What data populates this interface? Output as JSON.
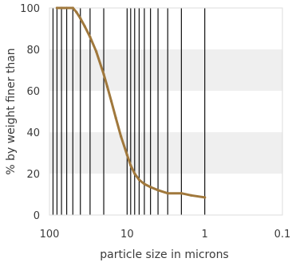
{
  "chart_data": {
    "type": "line",
    "title": "",
    "xlabel": "particle size in microns",
    "ylabel": "% by weight finer than",
    "x_scale": "log",
    "x_reversed": true,
    "xlim": [
      100,
      0.1
    ],
    "ylim": [
      0,
      100
    ],
    "x_ticks": [
      100,
      10,
      1,
      0.1
    ],
    "x_tick_labels": [
      "100",
      "10",
      "1",
      "0.1"
    ],
    "y_ticks": [
      0,
      20,
      40,
      60,
      80,
      100
    ],
    "y_tick_labels": [
      "0",
      "20",
      "40",
      "60",
      "80",
      "100"
    ],
    "grid": "horizontal shaded bands",
    "band_colors": [
      "#ffffff",
      "#efefef"
    ],
    "vertical_lines": [
      90,
      80,
      70,
      60,
      50,
      40,
      30,
      20,
      10,
      9,
      8,
      7,
      6,
      5,
      4,
      3,
      2,
      1
    ],
    "vertical_line_color": "#111111",
    "series": [
      {
        "color": "#a0783c",
        "x": [
          80,
          70,
          60,
          50,
          45,
          40,
          35,
          30,
          25,
          20,
          18,
          16,
          14,
          12,
          10,
          9,
          8,
          7,
          6,
          5,
          4,
          3,
          2,
          1.5,
          1
        ],
        "y": [
          100,
          100,
          100,
          100,
          98,
          95,
          91,
          86,
          79,
          68,
          62,
          55,
          47,
          38,
          29,
          24,
          20,
          17,
          15,
          13.5,
          12,
          10.5,
          10.5,
          9.5,
          8.5
        ]
      }
    ]
  }
}
